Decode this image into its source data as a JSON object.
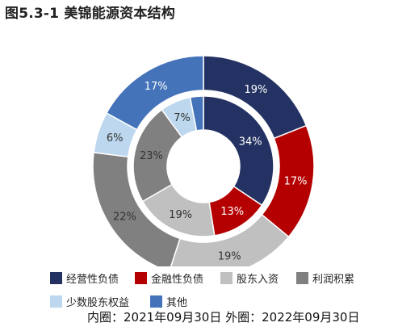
{
  "title": "图5.3-1 美锦能源资本结构",
  "chart_data": {
    "type": "pie",
    "inner": {
      "label": "内圈：2021年09月30日",
      "values": [
        34,
        13,
        19,
        23,
        7,
        3
      ],
      "labels": [
        "34%",
        "13%",
        "19%",
        "23%",
        "7%",
        ""
      ]
    },
    "outer": {
      "label": "外圈：2022年09月30日",
      "values": [
        19,
        17,
        19,
        22,
        6,
        17
      ],
      "labels": [
        "19%",
        "17%",
        "19%",
        "22%",
        "6%",
        "17%"
      ]
    },
    "series": [
      {
        "name": "经营性负债",
        "color": "#233262"
      },
      {
        "name": "金融性负债",
        "color": "#b40000"
      },
      {
        "name": "股东入资",
        "color": "#c0c0c0"
      },
      {
        "name": "利润积累",
        "color": "#808080"
      },
      {
        "name": "少数股东权益",
        "color": "#bdd7ee"
      },
      {
        "name": "其他",
        "color": "#4473b9"
      }
    ],
    "legend_position": "bottom"
  },
  "footnote": "内圈：2021年09月30日 外圈：2022年09月30日"
}
